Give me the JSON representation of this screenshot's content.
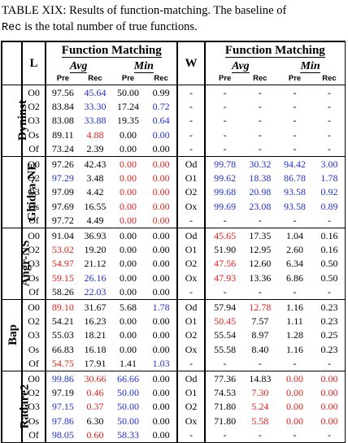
{
  "caption": {
    "line1": "TABLE XIX: Results of function-matching. The baseline of",
    "mono": "Rec",
    "rest": " is the total number of true functions."
  },
  "header": {
    "l": "L",
    "w": "W",
    "group": "Function Matching",
    "avg": "Avg",
    "min": "Min",
    "pre": "Pre",
    "rec": "Rec"
  },
  "colors": {
    "red": "#e0211d",
    "blue": "#2130cf"
  },
  "tools": [
    {
      "name": "Dyninst",
      "rows": [
        {
          "l": "O0",
          "v": [
            [
              "97.56",
              ""
            ],
            [
              "45.64",
              "blue"
            ],
            [
              "50.00",
              ""
            ],
            [
              "0.99",
              ""
            ]
          ],
          "w": "-",
          "v2": [
            [
              "-",
              ""
            ],
            [
              "-",
              ""
            ],
            [
              "-",
              ""
            ],
            [
              "-",
              ""
            ]
          ]
        },
        {
          "l": "O2",
          "v": [
            [
              "83.84",
              ""
            ],
            [
              "33.30",
              "blue"
            ],
            [
              "17.24",
              ""
            ],
            [
              "0.72",
              "blue"
            ]
          ],
          "w": "-",
          "v2": [
            [
              "-",
              ""
            ],
            [
              "-",
              ""
            ],
            [
              "-",
              ""
            ],
            [
              "-",
              ""
            ]
          ]
        },
        {
          "l": "O3",
          "v": [
            [
              "83.08",
              ""
            ],
            [
              "33.88",
              "blue"
            ],
            [
              "19.35",
              ""
            ],
            [
              "0.64",
              "blue"
            ]
          ],
          "w": "-",
          "v2": [
            [
              "-",
              ""
            ],
            [
              "-",
              ""
            ],
            [
              "-",
              ""
            ],
            [
              "-",
              ""
            ]
          ]
        },
        {
          "l": "Os",
          "v": [
            [
              "89.11",
              ""
            ],
            [
              "4.88",
              "red"
            ],
            [
              "0.00",
              ""
            ],
            [
              "0.00",
              "blue"
            ]
          ],
          "w": "-",
          "v2": [
            [
              "-",
              ""
            ],
            [
              "-",
              ""
            ],
            [
              "-",
              ""
            ],
            [
              "-",
              ""
            ]
          ]
        },
        {
          "l": "Of",
          "v": [
            [
              "73.24",
              ""
            ],
            [
              "2.39",
              ""
            ],
            [
              "0.00",
              ""
            ],
            [
              "0.00",
              ""
            ]
          ],
          "w": "-",
          "v2": [
            [
              "-",
              ""
            ],
            [
              "-",
              ""
            ],
            [
              "-",
              ""
            ],
            [
              "-",
              ""
            ]
          ]
        }
      ]
    },
    {
      "name": "Ghidra-NE",
      "rows": [
        {
          "l": "O0",
          "v": [
            [
              "97.26",
              ""
            ],
            [
              "42.43",
              ""
            ],
            [
              "0.00",
              "red"
            ],
            [
              "0.00",
              "red"
            ]
          ],
          "w": "Od",
          "v2": [
            [
              "99.78",
              "blue"
            ],
            [
              "30.32",
              "blue"
            ],
            [
              "94.42",
              "blue"
            ],
            [
              "3.00",
              "blue"
            ]
          ]
        },
        {
          "l": "O2",
          "v": [
            [
              "97.29",
              "blue"
            ],
            [
              "3.48",
              ""
            ],
            [
              "0.00",
              "red"
            ],
            [
              "0.00",
              "red"
            ]
          ],
          "w": "O1",
          "v2": [
            [
              "99.62",
              "blue"
            ],
            [
              "18.38",
              "blue"
            ],
            [
              "86.78",
              "blue"
            ],
            [
              "1.78",
              "blue"
            ]
          ]
        },
        {
          "l": "O3",
          "v": [
            [
              "97.09",
              ""
            ],
            [
              "4.42",
              ""
            ],
            [
              "0.00",
              "red"
            ],
            [
              "0.00",
              "red"
            ]
          ],
          "w": "O2",
          "v2": [
            [
              "99.68",
              "blue"
            ],
            [
              "20.98",
              "blue"
            ],
            [
              "93.58",
              "blue"
            ],
            [
              "0.92",
              "blue"
            ]
          ]
        },
        {
          "l": "Os",
          "v": [
            [
              "97.69",
              ""
            ],
            [
              "16.55",
              ""
            ],
            [
              "0.00",
              "red"
            ],
            [
              "0.00",
              "red"
            ]
          ],
          "w": "Ox",
          "v2": [
            [
              "99.69",
              "blue"
            ],
            [
              "23.08",
              "blue"
            ],
            [
              "93.58",
              "blue"
            ],
            [
              "0.89",
              "blue"
            ]
          ]
        },
        {
          "l": "Of",
          "v": [
            [
              "97.72",
              ""
            ],
            [
              "4.49",
              ""
            ],
            [
              "0.00",
              "red"
            ],
            [
              "0.00",
              "red"
            ]
          ],
          "w": "-",
          "v2": [
            [
              "-",
              ""
            ],
            [
              "-",
              ""
            ],
            [
              "-",
              ""
            ],
            [
              "-",
              ""
            ]
          ]
        }
      ]
    },
    {
      "name": "Angr-NS",
      "rows": [
        {
          "l": "O0",
          "v": [
            [
              "91.04",
              ""
            ],
            [
              "36.93",
              ""
            ],
            [
              "0.00",
              ""
            ],
            [
              "0.00",
              ""
            ]
          ],
          "w": "Od",
          "v2": [
            [
              "45.65",
              "red"
            ],
            [
              "17.35",
              ""
            ],
            [
              "1.04",
              ""
            ],
            [
              "0.16",
              ""
            ]
          ]
        },
        {
          "l": "O2",
          "v": [
            [
              "53.02",
              "red"
            ],
            [
              "19.20",
              ""
            ],
            [
              "0.00",
              ""
            ],
            [
              "0.00",
              ""
            ]
          ],
          "w": "O1",
          "v2": [
            [
              "51.90",
              ""
            ],
            [
              "12.95",
              ""
            ],
            [
              "2.60",
              ""
            ],
            [
              "0.16",
              ""
            ]
          ]
        },
        {
          "l": "O3",
          "v": [
            [
              "54.97",
              "red"
            ],
            [
              "21.12",
              ""
            ],
            [
              "0.00",
              ""
            ],
            [
              "0.00",
              ""
            ]
          ],
          "w": "O2",
          "v2": [
            [
              "47.56",
              "red"
            ],
            [
              "12.60",
              ""
            ],
            [
              "6.34",
              ""
            ],
            [
              "0.50",
              ""
            ]
          ]
        },
        {
          "l": "Os",
          "v": [
            [
              "59.15",
              "red"
            ],
            [
              "26.16",
              "blue"
            ],
            [
              "0.00",
              ""
            ],
            [
              "0.00",
              ""
            ]
          ],
          "w": "Ox",
          "v2": [
            [
              "47.93",
              "red"
            ],
            [
              "13.36",
              ""
            ],
            [
              "6.86",
              ""
            ],
            [
              "0.50",
              ""
            ]
          ]
        },
        {
          "l": "Of",
          "v": [
            [
              "58.26",
              ""
            ],
            [
              "22.03",
              "blue"
            ],
            [
              "0.00",
              ""
            ],
            [
              "0.00",
              ""
            ]
          ],
          "w": "-",
          "v2": [
            [
              "-",
              ""
            ],
            [
              "-",
              ""
            ],
            [
              "-",
              ""
            ],
            [
              "-",
              ""
            ]
          ]
        }
      ]
    },
    {
      "name": "Bap",
      "rows": [
        {
          "l": "O0",
          "v": [
            [
              "89.10",
              "red"
            ],
            [
              "31.67",
              ""
            ],
            [
              "5.68",
              ""
            ],
            [
              "1.78",
              "blue"
            ]
          ],
          "w": "Od",
          "v2": [
            [
              "57.94",
              ""
            ],
            [
              "12.78",
              "red"
            ],
            [
              "1.16",
              ""
            ],
            [
              "0.23",
              ""
            ]
          ]
        },
        {
          "l": "O2",
          "v": [
            [
              "54.21",
              ""
            ],
            [
              "16.23",
              ""
            ],
            [
              "0.00",
              ""
            ],
            [
              "0.00",
              ""
            ]
          ],
          "w": "O1",
          "v2": [
            [
              "50.45",
              "red"
            ],
            [
              "7.57",
              ""
            ],
            [
              "1.11",
              ""
            ],
            [
              "0.23",
              ""
            ]
          ]
        },
        {
          "l": "O3",
          "v": [
            [
              "55.03",
              ""
            ],
            [
              "18.21",
              ""
            ],
            [
              "0.00",
              ""
            ],
            [
              "0.00",
              ""
            ]
          ],
          "w": "O2",
          "v2": [
            [
              "55.54",
              ""
            ],
            [
              "8.97",
              ""
            ],
            [
              "1.28",
              ""
            ],
            [
              "0.25",
              ""
            ]
          ]
        },
        {
          "l": "Os",
          "v": [
            [
              "66.83",
              ""
            ],
            [
              "16.18",
              ""
            ],
            [
              "0.00",
              ""
            ],
            [
              "0.00",
              ""
            ]
          ],
          "w": "Ox",
          "v2": [
            [
              "55.58",
              ""
            ],
            [
              "8.40",
              ""
            ],
            [
              "1.16",
              ""
            ],
            [
              "0.23",
              ""
            ]
          ]
        },
        {
          "l": "Of",
          "v": [
            [
              "54.75",
              "red"
            ],
            [
              "17.91",
              ""
            ],
            [
              "1.41",
              ""
            ],
            [
              "1.03",
              "blue"
            ]
          ],
          "w": "-",
          "v2": [
            [
              "-",
              ""
            ],
            [
              "-",
              ""
            ],
            [
              "-",
              ""
            ],
            [
              "-",
              ""
            ]
          ]
        }
      ]
    },
    {
      "name": "Radare2",
      "rows": [
        {
          "l": "O0",
          "v": [
            [
              "99.86",
              "blue"
            ],
            [
              "30.66",
              "red"
            ],
            [
              "66.66",
              "blue"
            ],
            [
              "0.00",
              ""
            ]
          ],
          "w": "Od",
          "v2": [
            [
              "77.36",
              ""
            ],
            [
              "14.83",
              ""
            ],
            [
              "0.00",
              "red"
            ],
            [
              "0.00",
              "red"
            ]
          ]
        },
        {
          "l": "O2",
          "v": [
            [
              "97.19",
              ""
            ],
            [
              "0.46",
              "red"
            ],
            [
              "50.00",
              "blue"
            ],
            [
              "0.00",
              ""
            ]
          ],
          "w": "O1",
          "v2": [
            [
              "74.53",
              ""
            ],
            [
              "7.30",
              "red"
            ],
            [
              "0.00",
              "red"
            ],
            [
              "0.00",
              "red"
            ]
          ]
        },
        {
          "l": "O3",
          "v": [
            [
              "97.15",
              "blue"
            ],
            [
              "0.37",
              "red"
            ],
            [
              "50.00",
              "blue"
            ],
            [
              "0.00",
              ""
            ]
          ],
          "w": "O2",
          "v2": [
            [
              "71.80",
              ""
            ],
            [
              "5.24",
              "red"
            ],
            [
              "0.00",
              "red"
            ],
            [
              "0.00",
              "red"
            ]
          ]
        },
        {
          "l": "Os",
          "v": [
            [
              "97.86",
              "blue"
            ],
            [
              "6.30",
              ""
            ],
            [
              "50.00",
              "blue"
            ],
            [
              "0.00",
              ""
            ]
          ],
          "w": "Ox",
          "v2": [
            [
              "71.80",
              ""
            ],
            [
              "5.58",
              "red"
            ],
            [
              "0.00",
              "red"
            ],
            [
              "0.00",
              "red"
            ]
          ]
        },
        {
          "l": "Of",
          "v": [
            [
              "98.05",
              "blue"
            ],
            [
              "0.60",
              "red"
            ],
            [
              "58.33",
              "blue"
            ],
            [
              "0.00",
              ""
            ]
          ],
          "w": "-",
          "v2": [
            [
              "-",
              ""
            ],
            [
              "-",
              ""
            ],
            [
              "-",
              ""
            ],
            [
              "-",
              ""
            ]
          ]
        }
      ]
    }
  ]
}
